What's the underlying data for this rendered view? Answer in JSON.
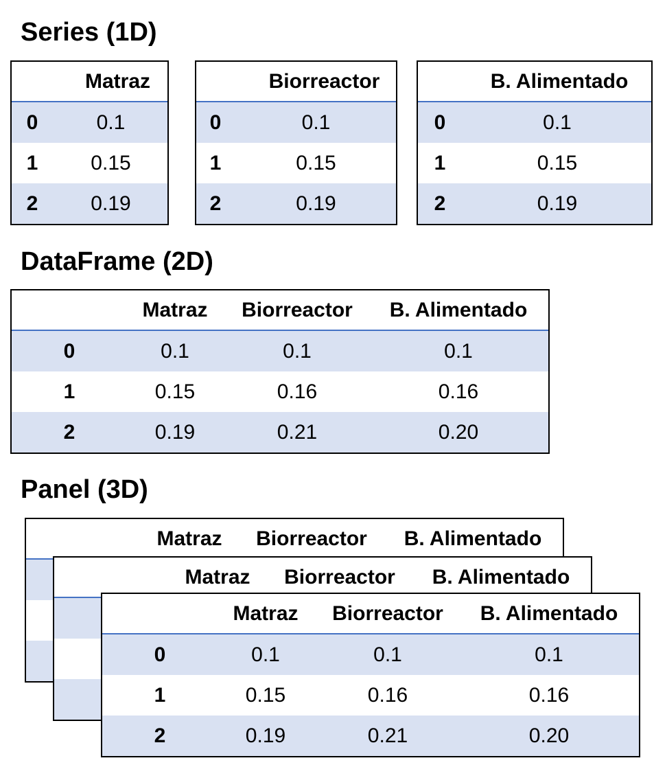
{
  "sections": {
    "series_title": "Series (1D)",
    "dataframe_title": "DataFrame (2D)",
    "panel_title": "Panel (3D)"
  },
  "series": [
    {
      "header": "Matraz",
      "rows": [
        {
          "index": "0",
          "value": "0.1"
        },
        {
          "index": "1",
          "value": "0.15"
        },
        {
          "index": "2",
          "value": "0.19"
        }
      ]
    },
    {
      "header": "Biorreactor",
      "rows": [
        {
          "index": "0",
          "value": "0.1"
        },
        {
          "index": "1",
          "value": "0.15"
        },
        {
          "index": "2",
          "value": "0.19"
        }
      ]
    },
    {
      "header": "B. Alimentado",
      "rows": [
        {
          "index": "0",
          "value": "0.1"
        },
        {
          "index": "1",
          "value": "0.15"
        },
        {
          "index": "2",
          "value": "0.19"
        }
      ]
    }
  ],
  "dataframe": {
    "columns": [
      "Matraz",
      "Biorreactor",
      "B. Alimentado"
    ],
    "rows": [
      {
        "index": "0",
        "values": [
          "0.1",
          "0.1",
          "0.1"
        ]
      },
      {
        "index": "1",
        "values": [
          "0.15",
          "0.16",
          "0.16"
        ]
      },
      {
        "index": "2",
        "values": [
          "0.19",
          "0.21",
          "0.20"
        ]
      }
    ]
  },
  "panel": {
    "back_columns": [
      "Matraz",
      "Biorreactor",
      "B. Alimentado"
    ],
    "middle_columns": [
      "Matraz",
      "Biorreactor",
      "B. Alimentado"
    ],
    "front_columns": [
      "Matraz",
      "Biorreactor",
      "B. Alimentado"
    ],
    "front_rows": [
      {
        "index": "0",
        "values": [
          "0.1",
          "0.1",
          "0.1"
        ]
      },
      {
        "index": "1",
        "values": [
          "0.15",
          "0.16",
          "0.16"
        ]
      },
      {
        "index": "2",
        "values": [
          "0.19",
          "0.21",
          "0.20"
        ]
      }
    ]
  }
}
